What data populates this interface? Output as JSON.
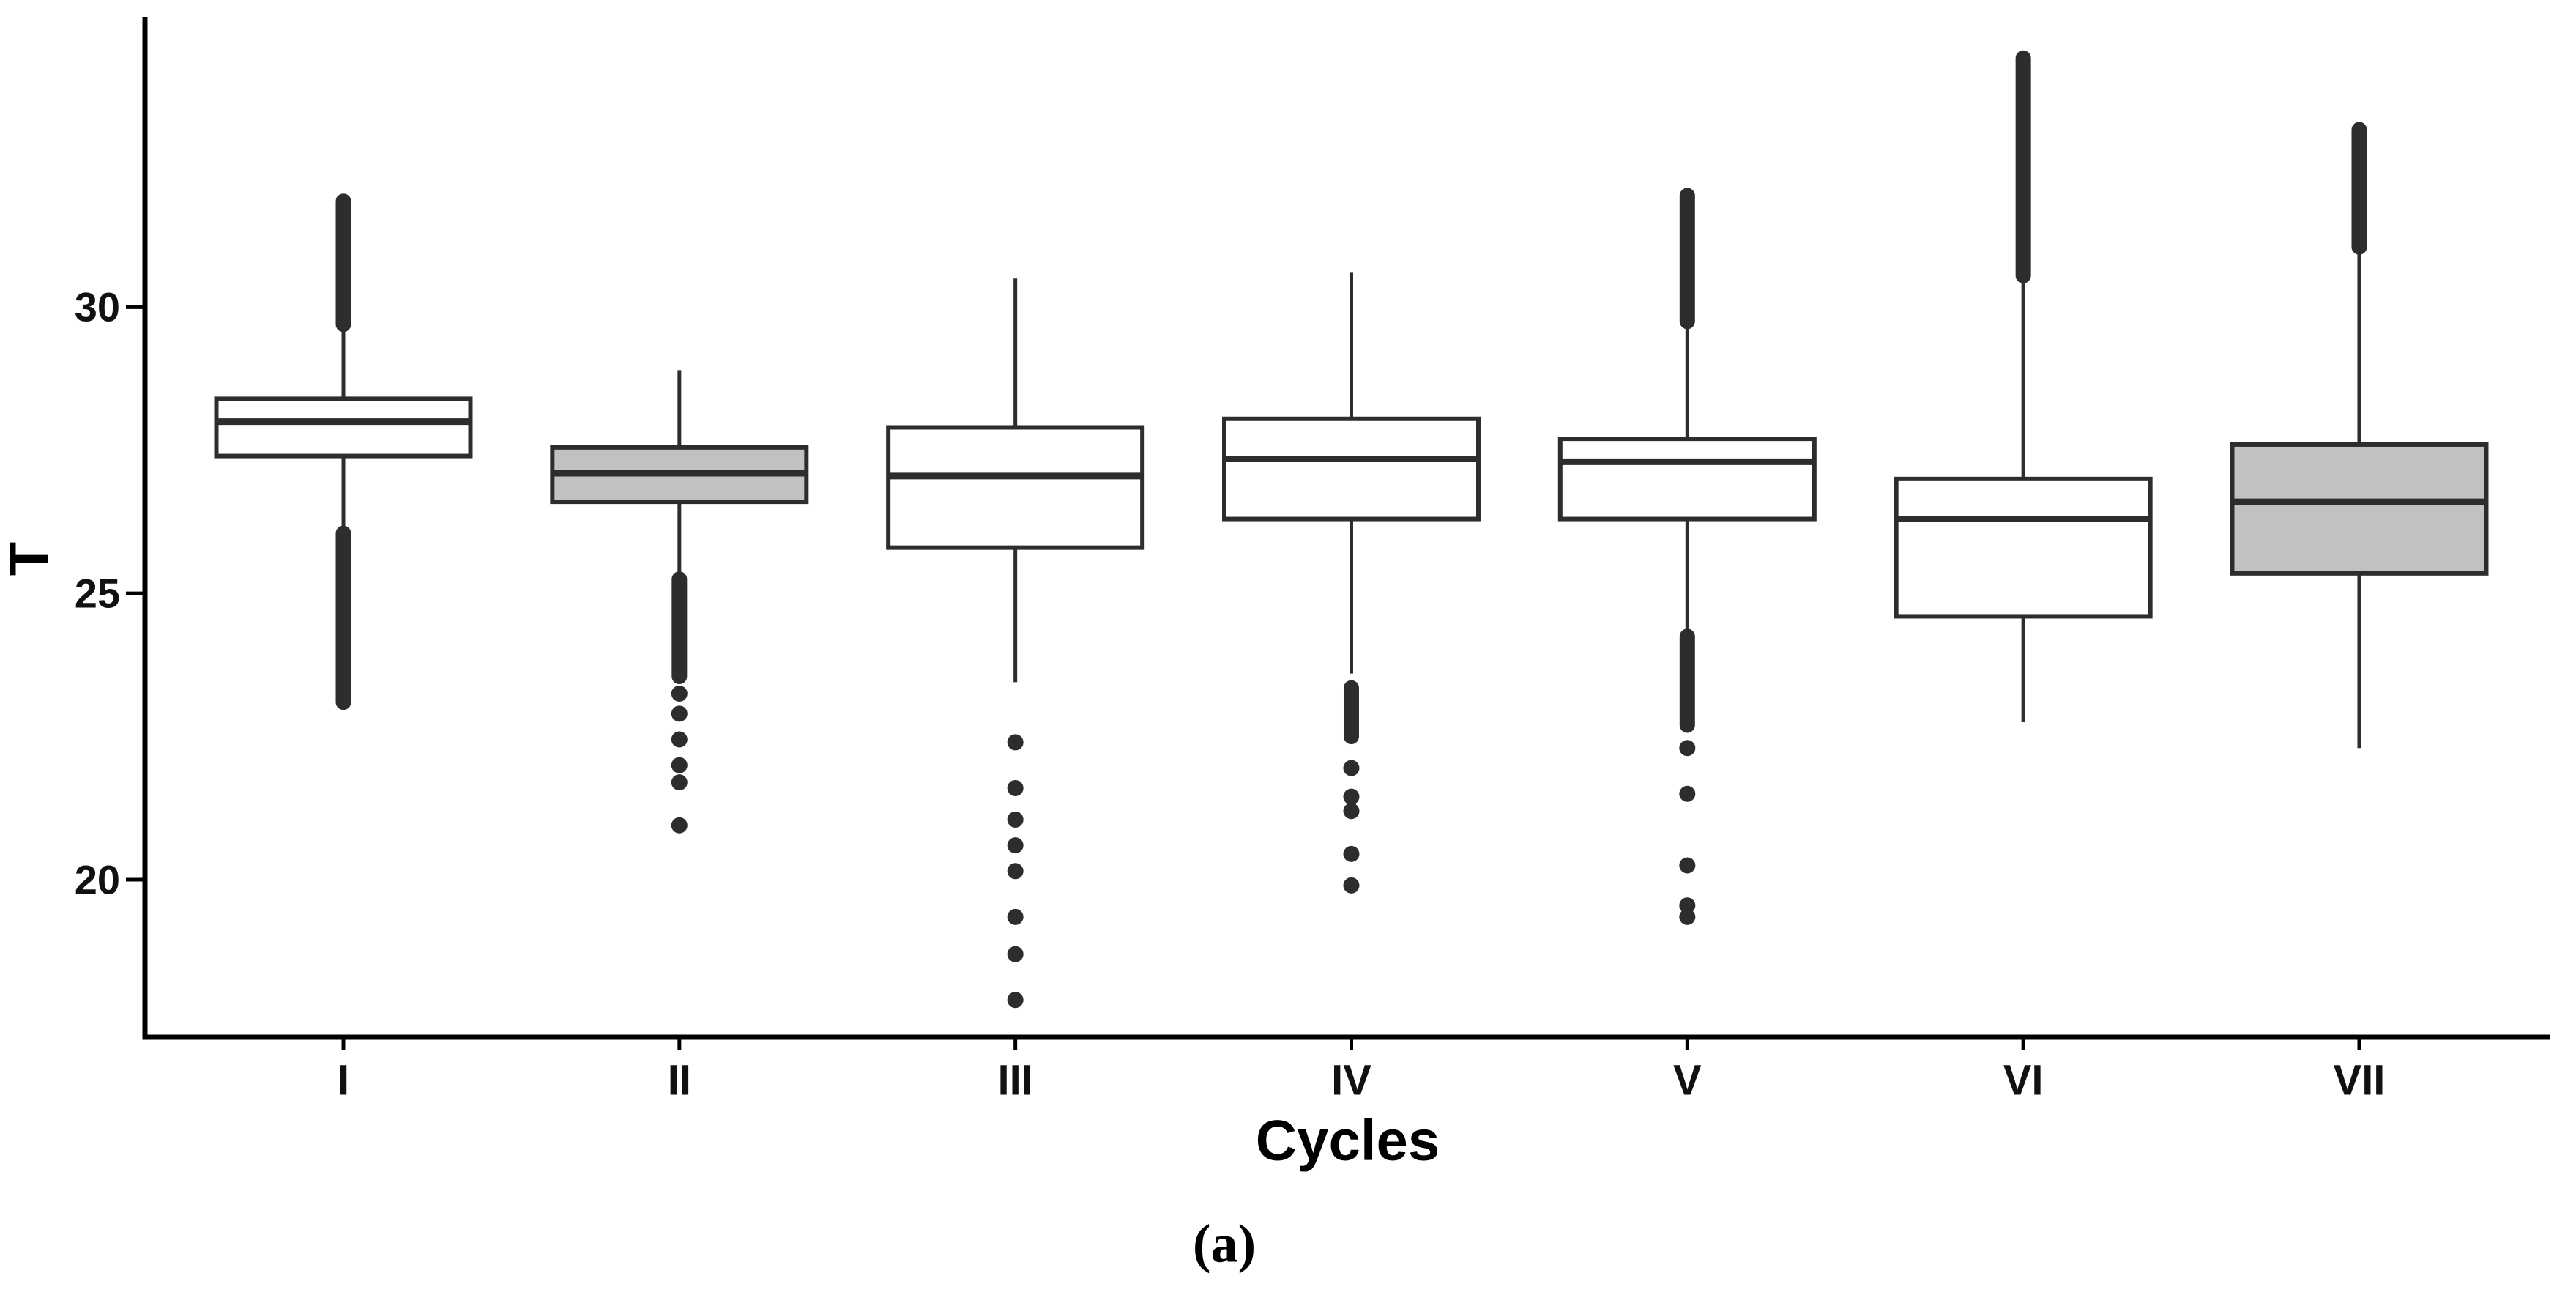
{
  "figure": {
    "background": "#ffffff"
  },
  "chart_data": {
    "type": "boxplot",
    "title": "",
    "xlabel": "Cycles",
    "ylabel": "T",
    "caption": "(a)",
    "categories": [
      "I",
      "II",
      "III",
      "IV",
      "V",
      "VI",
      "VII"
    ],
    "ylim": [
      17.25,
      35.07
    ],
    "yticks": [
      30,
      25,
      20
    ],
    "ytick_labels": [
      "30",
      "25",
      "20"
    ],
    "grid": false,
    "legend": false,
    "boxes": [
      {
        "category": "I",
        "fill": "white",
        "whisker_low": 26.1,
        "q1": 27.4,
        "median": 28.0,
        "q3": 28.4,
        "whisker_high": 29.6,
        "outlier_runs": [
          {
            "from": 29.7,
            "to": 31.85
          },
          {
            "from": 23.1,
            "to": 26.05
          }
        ],
        "outliers": []
      },
      {
        "category": "II",
        "fill": "gray",
        "whisker_low": 25.3,
        "q1": 26.6,
        "median": 27.1,
        "q3": 27.55,
        "whisker_high": 28.9,
        "outlier_runs": [
          {
            "from": 23.55,
            "to": 25.25
          }
        ],
        "outliers": [
          23.25,
          22.9,
          22.45,
          22.0,
          21.7,
          20.95
        ]
      },
      {
        "category": "III",
        "fill": "white",
        "whisker_low": 23.45,
        "q1": 25.8,
        "median": 27.05,
        "q3": 27.9,
        "whisker_high": 30.5,
        "outlier_runs": [],
        "outliers": [
          22.4,
          21.6,
          21.05,
          20.6,
          20.15,
          19.35,
          18.7,
          17.9
        ]
      },
      {
        "category": "IV",
        "fill": "white",
        "whisker_low": 23.6,
        "q1": 26.3,
        "median": 27.35,
        "q3": 28.05,
        "whisker_high": 30.6,
        "outlier_runs": [
          {
            "from": 22.5,
            "to": 23.35
          }
        ],
        "outliers": [
          21.95,
          21.45,
          21.2,
          20.45,
          19.9
        ]
      },
      {
        "category": "V",
        "fill": "white",
        "whisker_low": 24.3,
        "q1": 26.3,
        "median": 27.3,
        "q3": 27.7,
        "whisker_high": 29.7,
        "outlier_runs": [
          {
            "from": 29.75,
            "to": 31.95
          },
          {
            "from": 22.7,
            "to": 24.25
          }
        ],
        "outliers": [
          22.3,
          21.5,
          20.25,
          19.55,
          19.35
        ]
      },
      {
        "category": "VI",
        "fill": "white",
        "whisker_low": 22.75,
        "q1": 24.6,
        "median": 26.3,
        "q3": 27.0,
        "whisker_high": 30.5,
        "outlier_runs": [
          {
            "from": 30.55,
            "to": 34.35
          }
        ],
        "outliers": []
      },
      {
        "category": "VII",
        "fill": "gray",
        "whisker_low": 22.3,
        "q1": 25.35,
        "median": 26.6,
        "q3": 27.6,
        "whisker_high": 31.0,
        "outlier_runs": [
          {
            "from": 31.05,
            "to": 33.1
          }
        ],
        "outliers": []
      }
    ],
    "colors": {
      "axis": "#000000",
      "box_stroke": "#2d2d2d",
      "box_fill_white": "#ffffff",
      "box_fill_gray": "#c1c1c1",
      "outlier": "#2d2d2d",
      "text": "#111111"
    }
  }
}
